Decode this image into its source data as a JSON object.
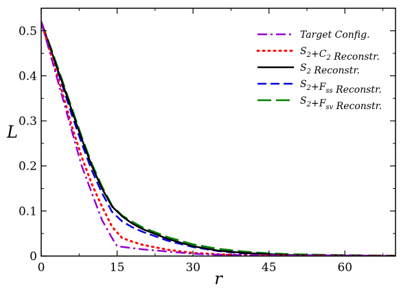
{
  "chart_data": {
    "type": "line",
    "title": "",
    "xlabel": "r",
    "ylabel": "L",
    "xlim": [
      0,
      70
    ],
    "ylim": [
      0,
      0.55
    ],
    "xticks": [
      0,
      15,
      30,
      45,
      60
    ],
    "yticks": [
      0,
      0.1,
      0.2,
      0.3,
      0.4,
      0.5
    ],
    "xtick_labels": [
      "0",
      "15",
      "30",
      "45",
      "60"
    ],
    "ytick_labels": [
      "0",
      "0.1",
      "0.2",
      "0.3",
      "0.4",
      "0.5"
    ],
    "grid": false,
    "legend_position": "top-right",
    "series": [
      {
        "name": "Target Config.",
        "legend_parts": [
          [
            "Target Config.",
            ""
          ]
        ],
        "color": "#9400d3",
        "dash": "dash-dot",
        "x": [
          0,
          2,
          4,
          6,
          8,
          10,
          12,
          14,
          15,
          17,
          20,
          25,
          30,
          35,
          40,
          50,
          60,
          70
        ],
        "y": [
          0.52,
          0.44,
          0.36,
          0.28,
          0.2,
          0.14,
          0.08,
          0.04,
          0.022,
          0.019,
          0.015,
          0.01,
          0.005,
          0.003,
          0.002,
          0.001,
          0.001,
          0.0
        ]
      },
      {
        "name": "S2+C2 Reconstr.",
        "legend_parts": [
          [
            "S",
            "2"
          ],
          [
            "+C",
            "2"
          ],
          [
            "  Reconstr.",
            ""
          ]
        ],
        "color": "#ff0000",
        "dash": "dot",
        "x": [
          0,
          2,
          4,
          6,
          8,
          10,
          12,
          14,
          16,
          18,
          20,
          25,
          30,
          35,
          40,
          50,
          60,
          70
        ],
        "y": [
          0.52,
          0.445,
          0.37,
          0.29,
          0.22,
          0.16,
          0.11,
          0.065,
          0.04,
          0.032,
          0.025,
          0.014,
          0.007,
          0.004,
          0.002,
          0.001,
          0.0,
          0.0
        ]
      },
      {
        "name": "S2 Reconstr.",
        "legend_parts": [
          [
            "S",
            "2"
          ],
          [
            "  Reconstr.",
            ""
          ]
        ],
        "color": "#000000",
        "dash": "solid",
        "x": [
          0,
          2,
          4,
          6,
          8,
          10,
          12,
          14,
          16,
          18,
          20,
          25,
          30,
          35,
          40,
          45,
          50,
          60,
          70
        ],
        "y": [
          0.52,
          0.455,
          0.39,
          0.325,
          0.26,
          0.2,
          0.15,
          0.11,
          0.088,
          0.072,
          0.06,
          0.038,
          0.022,
          0.012,
          0.007,
          0.004,
          0.002,
          0.001,
          0.0
        ]
      },
      {
        "name": "S2+Fss Reconstr.",
        "legend_parts": [
          [
            "S",
            "2"
          ],
          [
            "+F",
            "ss"
          ],
          [
            "  Reconstr.",
            ""
          ]
        ],
        "color": "#0000dd",
        "dash": "dash",
        "x": [
          0,
          2,
          4,
          6,
          8,
          10,
          12,
          14,
          16,
          18,
          20,
          25,
          30,
          35,
          40,
          45,
          50,
          60,
          70
        ],
        "y": [
          0.52,
          0.455,
          0.385,
          0.315,
          0.25,
          0.19,
          0.14,
          0.098,
          0.077,
          0.064,
          0.054,
          0.034,
          0.02,
          0.011,
          0.006,
          0.004,
          0.002,
          0.001,
          0.0
        ]
      },
      {
        "name": "S2+Fsv Reconstr.",
        "legend_parts": [
          [
            "S",
            "2"
          ],
          [
            "+F",
            "sv"
          ],
          [
            "  Reconstr.",
            ""
          ]
        ],
        "color": "#008000",
        "dash": "long-dash",
        "x": [
          0,
          2,
          4,
          6,
          8,
          10,
          12,
          14,
          16,
          18,
          20,
          25,
          30,
          35,
          40,
          45,
          50,
          60,
          70
        ],
        "y": [
          0.52,
          0.46,
          0.395,
          0.33,
          0.265,
          0.205,
          0.155,
          0.112,
          0.09,
          0.076,
          0.064,
          0.042,
          0.026,
          0.016,
          0.01,
          0.006,
          0.004,
          0.002,
          0.001
        ]
      }
    ]
  }
}
